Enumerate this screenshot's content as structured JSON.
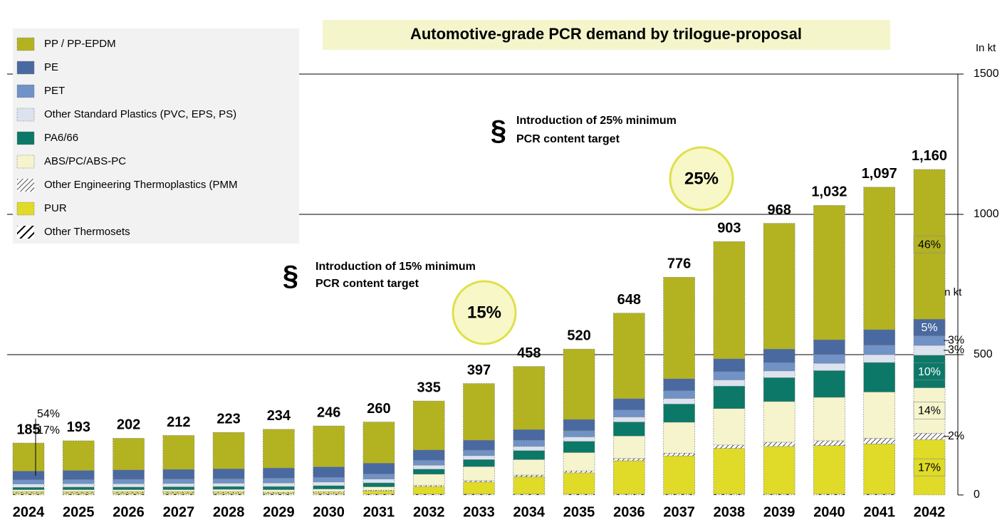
{
  "chart_data": {
    "type": "stacked_bar",
    "title": "Automotive-grade PCR demand by trilogue-proposal",
    "unit_label": "In kt",
    "unit_label_inner": "In kt",
    "annotations": [
      {
        "symbol": "§",
        "lines": [
          "Introduction of 25% minimum",
          "PCR content target"
        ],
        "badge": "25%"
      },
      {
        "symbol": "§",
        "lines": [
          "Introduction of 15% minimum",
          "PCR content target"
        ],
        "badge": "15%"
      }
    ],
    "categories": [
      "2024",
      "2025",
      "2026",
      "2027",
      "2028",
      "2029",
      "2030",
      "2031",
      "2032",
      "2033",
      "2034",
      "2035",
      "2036",
      "2037",
      "2038",
      "2039",
      "2040",
      "2041",
      "2042"
    ],
    "totals": [
      185,
      193,
      202,
      212,
      223,
      234,
      246,
      260,
      335,
      397,
      458,
      520,
      648,
      776,
      903,
      968,
      1032,
      1097,
      1160
    ],
    "total_labels": [
      "185",
      "193",
      "202",
      "212",
      "223",
      "234",
      "246",
      "260",
      "335",
      "397",
      "458",
      "520",
      "648",
      "776",
      "903",
      "968",
      "1,032",
      "1,097",
      "1,160"
    ],
    "series": [
      {
        "name": "PP / PP-EPDM",
        "color": "#b3b322",
        "values": [
          100,
          106,
          113,
          121,
          130,
          138,
          146,
          147,
          175,
          202,
          225,
          251,
          305,
          362,
          418,
          448,
          479,
          508,
          534
        ],
        "first_label": "54%",
        "last_label": "46%"
      },
      {
        "name": "PE",
        "color": "#4a69a0",
        "values": [
          31,
          32,
          33,
          34,
          35,
          36,
          37,
          38,
          36,
          35,
          38,
          40,
          40,
          42,
          45,
          48,
          52,
          55,
          58
        ],
        "first_label": "17%",
        "last_label": "5%"
      },
      {
        "name": "PET",
        "color": "#7092c6",
        "values": [
          15,
          15,
          16,
          16,
          16,
          17,
          17,
          18,
          18,
          20,
          22,
          22,
          25,
          28,
          30,
          30,
          32,
          34,
          35
        ],
        "last_label": "3%"
      },
      {
        "name": "Other Standard Plastics (PVC, EPS, PS)",
        "color": "#dce3ee",
        "values": [
          12,
          12,
          12,
          12,
          12,
          13,
          13,
          14,
          14,
          14,
          15,
          16,
          18,
          20,
          22,
          24,
          26,
          28,
          35
        ],
        "last_label": "3%"
      },
      {
        "name": "PA6/66",
        "color": "#0c7868",
        "values": [
          8,
          9,
          9,
          10,
          10,
          11,
          12,
          14,
          18,
          25,
          32,
          40,
          50,
          65,
          80,
          85,
          95,
          105,
          116
        ],
        "last_label": "10%"
      },
      {
        "name": "ABS/PC/ABS-PC",
        "color": "#f6f4cc",
        "values": [
          8,
          8,
          8,
          8,
          9,
          9,
          10,
          12,
          40,
          50,
          55,
          65,
          80,
          110,
          130,
          145,
          155,
          165,
          162
        ],
        "last_label": "14%"
      },
      {
        "name": "Other Engineering Thermoplastics (PMM",
        "color": "#000000",
        "pattern": "hatch-light",
        "values": [
          3,
          3,
          3,
          3,
          3,
          3,
          3,
          3,
          4,
          5,
          6,
          7,
          8,
          10,
          12,
          15,
          17,
          20,
          23
        ],
        "last_label": "2%"
      },
      {
        "name": "PUR",
        "color": "#dfdb28",
        "values": [
          5,
          5,
          5,
          5,
          5,
          4,
          5,
          11,
          27,
          43,
          62,
          76,
          119,
          136,
          163,
          170,
          173,
          179,
          197
        ],
        "last_label": "17%"
      },
      {
        "name": "Other Thermosets",
        "color": "#000000",
        "pattern": "hatch-heavy",
        "values": [
          3,
          3,
          3,
          3,
          3,
          3,
          3,
          3,
          3,
          3,
          3,
          3,
          3,
          3,
          3,
          3,
          3,
          3,
          0
        ]
      }
    ],
    "ylim": [
      0,
      1500
    ],
    "yticks": [
      0,
      500,
      1000,
      1500
    ],
    "grid": true,
    "legend": "top-left"
  }
}
